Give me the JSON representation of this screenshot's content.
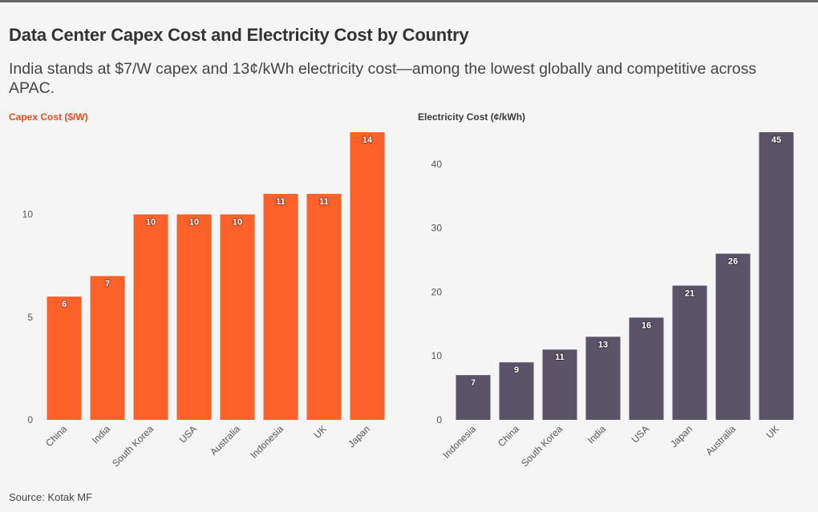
{
  "title": "Data Center Capex Cost and Electricity Cost by Country",
  "subtitle": "India stands at $7/W capex and 13¢/kWh electricity cost—among the lowest globally and competitive across APAC.",
  "source": "Source: Kotak MF",
  "colors": {
    "capex": "#ff612b",
    "electricity": "#5b5368"
  },
  "chart_data": [
    {
      "type": "bar",
      "title": "Capex Cost ($/W)",
      "xlabel": "",
      "ylabel": "",
      "categories": [
        "China",
        "India",
        "South Korea",
        "USA",
        "Australia",
        "Indonesia",
        "UK",
        "Japan"
      ],
      "values": [
        6,
        7,
        10,
        10,
        10,
        11,
        11,
        14
      ],
      "ylim": [
        0,
        14
      ],
      "yticks": [
        0,
        5,
        10
      ],
      "grid": false,
      "data_labels": true
    },
    {
      "type": "bar",
      "title": "Electricity Cost (¢/kWh)",
      "xlabel": "",
      "ylabel": "",
      "categories": [
        "Indonesia",
        "China",
        "South Korea",
        "India",
        "USA",
        "Japan",
        "Australia",
        "UK"
      ],
      "values": [
        7,
        9,
        11,
        13,
        16,
        21,
        26,
        45
      ],
      "ylim": [
        0,
        45
      ],
      "yticks": [
        0,
        10,
        20,
        30,
        40
      ],
      "grid": false,
      "data_labels": true
    }
  ]
}
